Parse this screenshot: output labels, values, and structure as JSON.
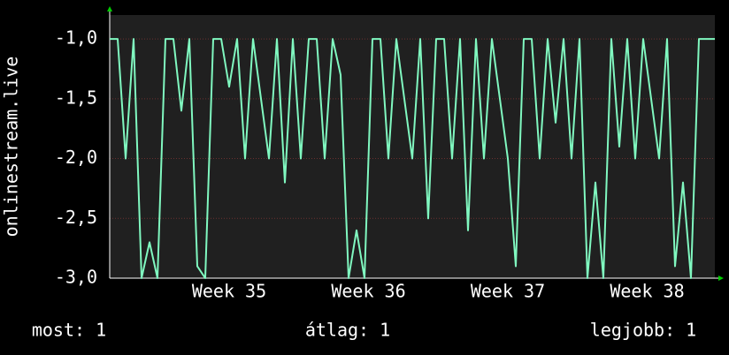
{
  "chart_data": {
    "type": "line",
    "y_label": "onlinestream.live",
    "x": [
      0,
      0.4,
      0.8,
      1.2,
      1.6,
      2,
      2.4,
      2.8,
      3.2,
      3.6,
      4,
      4.4,
      4.8,
      5.2,
      5.6,
      6,
      6.4,
      6.8,
      7.2,
      7.6,
      8,
      8.4,
      8.8,
      9.2,
      9.6,
      10,
      10.4,
      10.8,
      11.2,
      11.6,
      12,
      12.4,
      12.8,
      13.2,
      13.6,
      14,
      14.4,
      14.8,
      15.2,
      15.6,
      16,
      16.4,
      16.8,
      17.2,
      17.6,
      18,
      18.4,
      18.8,
      19.2,
      19.6,
      20,
      20.4,
      20.8,
      21.2,
      21.6,
      22,
      22.4,
      22.8,
      23.2,
      23.6,
      24,
      24.4,
      24.8,
      25.2,
      25.6,
      26,
      26.4,
      26.8,
      27.2,
      27.6,
      28,
      28.4,
      28.8,
      29.2,
      29.6,
      30,
      30.4
    ],
    "series": [
      {
        "color": "#80f8c0",
        "values": [
          -1,
          -1,
          -2,
          -1,
          -3,
          -2.7,
          -3,
          -1,
          -1,
          -1.6,
          -1,
          -2.9,
          -3,
          -1,
          -1,
          -1.4,
          -1,
          -2,
          -1,
          -1.5,
          -2,
          -1,
          -2.2,
          -1,
          -2,
          -1,
          -1,
          -2,
          -1,
          -1.3,
          -3,
          -2.6,
          -3,
          -1,
          -1,
          -2,
          -1,
          -1.5,
          -2,
          -1,
          -2.5,
          -1,
          -1,
          -2,
          -1,
          -2.6,
          -1,
          -2,
          -1,
          -1.5,
          -2,
          -2.9,
          -1,
          -1,
          -2,
          -1,
          -1.7,
          -1,
          -2,
          -1,
          -3,
          -2.2,
          -3,
          -1,
          -1.9,
          -1,
          -2,
          -1,
          -1.5,
          -2,
          -1,
          -2.9,
          -2.2,
          -3,
          -1,
          -1,
          -1
        ]
      }
    ],
    "xlim": [
      0,
      30.4
    ],
    "xticks": [
      {
        "value": 6,
        "label": "Week 35"
      },
      {
        "value": 13,
        "label": "Week 36"
      },
      {
        "value": 20,
        "label": "Week 37"
      },
      {
        "value": 27,
        "label": "Week 38"
      }
    ],
    "ylim": [
      -3,
      -0.8
    ],
    "yticks": [
      {
        "value": -3,
        "label": "-3,0"
      },
      {
        "value": -2.5,
        "label": "-2,5"
      },
      {
        "value": -2,
        "label": "-2,0"
      },
      {
        "value": -1.5,
        "label": "-1,5"
      },
      {
        "value": -1,
        "label": "-1,0"
      }
    ],
    "grid": true,
    "stats": [
      "most: 1",
      "átlag: 1",
      "legjobb: 1"
    ]
  }
}
